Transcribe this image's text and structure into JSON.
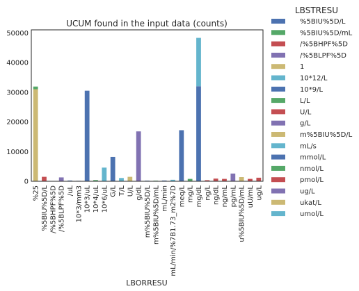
{
  "chart_data": {
    "type": "bar",
    "stacked": true,
    "title": "UCUM found in the input data (counts)",
    "xlabel": "LBORRESU",
    "ylabel": "",
    "ylim": [
      0,
      51000
    ],
    "yticks": [
      0,
      10000,
      20000,
      30000,
      40000,
      50000
    ],
    "grid": false,
    "legend_position": "right-outside",
    "legend_title": "LBSTRESU",
    "categories": [
      "%25",
      "%5BIU%5D/L",
      "/%5BHPF%5D",
      "/%5BLPF%5D",
      "/uL",
      "10*3/mm3",
      "10*3/uL",
      "10*4/uL",
      "10*6/uL",
      "G/L",
      "T/L",
      "U/L",
      "g/dL",
      "m%5BIU%5D/L",
      "m%5BIU%5D/mL",
      "mL/min",
      "mL/min/%7B1.73_m2%7D",
      "meq/L",
      "mg/L",
      "mg/dL",
      "ng/L",
      "ng/dL",
      "ng/mL",
      "pg/mL",
      "u%5BIU%5D/mL",
      "uU/mL",
      "ug/L"
    ],
    "series": [
      {
        "name": "%5BIU%5D/L",
        "color": "#4c72b0",
        "values": [
          0,
          0,
          0,
          0,
          0,
          0,
          0,
          0,
          0,
          0,
          0,
          0,
          0,
          0,
          0,
          0,
          0,
          0,
          0,
          0,
          0,
          0,
          0,
          0,
          0,
          0,
          0
        ]
      },
      {
        "name": "%5BIU%5D/mL",
        "color": "#55a868",
        "values": [
          0,
          0,
          0,
          0,
          0,
          0,
          0,
          0,
          0,
          0,
          0,
          0,
          0,
          0,
          0,
          0,
          0,
          0,
          0,
          0,
          0,
          0,
          0,
          0,
          0,
          0,
          0
        ]
      },
      {
        "name": "/%5BHPF%5D",
        "color": "#c44e52",
        "values": [
          0,
          1500,
          0,
          0,
          0,
          0,
          0,
          0,
          0,
          0,
          0,
          0,
          0,
          0,
          0,
          0,
          0,
          0,
          0,
          0,
          0,
          0,
          0,
          0,
          0,
          0,
          0
        ]
      },
      {
        "name": "/%5BLPF%5D",
        "color": "#8172b2",
        "values": [
          0,
          0,
          0,
          1300,
          0,
          0,
          0,
          0,
          0,
          0,
          0,
          0,
          0,
          0,
          0,
          0,
          0,
          0,
          0,
          0,
          0,
          0,
          0,
          0,
          0,
          0,
          0
        ]
      },
      {
        "name": "1",
        "color": "#ccb974",
        "values": [
          31000,
          0,
          0,
          0,
          0,
          0,
          0,
          0,
          0,
          0,
          0,
          0,
          0,
          0,
          0,
          0,
          0,
          0,
          0,
          0,
          0,
          0,
          0,
          0,
          0,
          0,
          0
        ]
      },
      {
        "name": "10*12/L",
        "color": "#64b5cd",
        "values": [
          0,
          0,
          0,
          0,
          0,
          0,
          0,
          0,
          0,
          0,
          1100,
          0,
          0,
          0,
          0,
          0,
          0,
          0,
          0,
          0,
          0,
          0,
          0,
          0,
          0,
          0,
          0
        ]
      },
      {
        "name": "10*9/L",
        "color": "#4c72b0",
        "values": [
          0,
          0,
          0,
          0,
          0,
          0,
          30500,
          0,
          0,
          8200,
          0,
          0,
          0,
          0,
          0,
          0,
          0,
          0,
          0,
          0,
          0,
          0,
          0,
          0,
          0,
          0,
          0
        ]
      },
      {
        "name": "L/L",
        "color": "#55a868",
        "values": [
          900,
          0,
          0,
          0,
          0,
          0,
          0,
          0,
          0,
          0,
          0,
          0,
          0,
          0,
          0,
          0,
          0,
          0,
          0,
          0,
          0,
          0,
          0,
          0,
          0,
          0,
          0
        ]
      },
      {
        "name": "U/L",
        "color": "#c44e52",
        "values": [
          0,
          0,
          0,
          0,
          0,
          0,
          0,
          0,
          0,
          0,
          0,
          0,
          0,
          0,
          0,
          0,
          0,
          0,
          0,
          0,
          0,
          0,
          0,
          0,
          0,
          0,
          0
        ]
      },
      {
        "name": "g/L",
        "color": "#8172b2",
        "values": [
          0,
          0,
          0,
          0,
          0,
          0,
          0,
          0,
          0,
          0,
          0,
          0,
          16800,
          0,
          0,
          0,
          0,
          0,
          0,
          0,
          0,
          0,
          0,
          0,
          0,
          0,
          0
        ]
      },
      {
        "name": "m%5BIU%5D/L",
        "color": "#ccb974",
        "values": [
          0,
          0,
          0,
          0,
          0,
          0,
          0,
          0,
          0,
          0,
          0,
          0,
          0,
          0,
          0,
          0,
          0,
          0,
          0,
          0,
          0,
          0,
          0,
          0,
          0,
          0,
          0
        ]
      },
      {
        "name": "mL/s",
        "color": "#64b5cd",
        "values": [
          0,
          0,
          0,
          0,
          0,
          0,
          0,
          0,
          0,
          0,
          0,
          0,
          0,
          0,
          0,
          0,
          0,
          0,
          0,
          0,
          0,
          0,
          0,
          0,
          0,
          0,
          0
        ]
      },
      {
        "name": "mmol/L",
        "color": "#4c72b0",
        "values": [
          0,
          0,
          0,
          0,
          0,
          0,
          0,
          0,
          0,
          0,
          0,
          0,
          0,
          0,
          0,
          0,
          0,
          17200,
          0,
          32000,
          0,
          0,
          0,
          0,
          0,
          0,
          0
        ]
      },
      {
        "name": "nmol/L",
        "color": "#55a868",
        "values": [
          0,
          0,
          0,
          0,
          0,
          0,
          0,
          0,
          0,
          0,
          0,
          0,
          0,
          0,
          0,
          0,
          0,
          0,
          800,
          0,
          0,
          0,
          0,
          0,
          0,
          0,
          0
        ]
      },
      {
        "name": "pmol/L",
        "color": "#c44e52",
        "values": [
          0,
          0,
          0,
          0,
          0,
          0,
          0,
          0,
          0,
          0,
          0,
          0,
          0,
          0,
          0,
          0,
          0,
          0,
          0,
          0,
          0,
          900,
          0,
          0,
          0,
          0,
          1200
        ]
      },
      {
        "name": "ug/L",
        "color": "#8172b2",
        "values": [
          0,
          0,
          0,
          0,
          0,
          0,
          0,
          0,
          0,
          0,
          0,
          0,
          0,
          0,
          0,
          0,
          0,
          0,
          0,
          0,
          0,
          0,
          0,
          2600,
          0,
          0,
          0
        ]
      },
      {
        "name": "ukat/L",
        "color": "#ccb974",
        "values": [
          0,
          0,
          0,
          0,
          0,
          0,
          0,
          0,
          0,
          0,
          0,
          1500,
          0,
          0,
          0,
          0,
          0,
          0,
          0,
          0,
          0,
          0,
          0,
          0,
          1400,
          0,
          0
        ]
      },
      {
        "name": "umol/L",
        "color": "#64b5cd",
        "values": [
          0,
          0,
          0,
          0,
          0,
          0,
          0,
          0,
          4600,
          0,
          0,
          0,
          0,
          0,
          0,
          0,
          0,
          0,
          0,
          16300,
          0,
          0,
          0,
          0,
          0,
          0,
          0
        ]
      }
    ],
    "other_small_bars": {
      "/%5BHPF%5D": 0,
      "/uL": 250,
      "10*3/mm3": 150,
      "10*4/uL": 400,
      "m%5BIU%5D/L": 200,
      "m%5BIU%5D/mL": 200,
      "mL/min": 250,
      "mL/min/%7B1.73_m2%7D": 500,
      "ng/L": 350,
      "ng/mL": 800,
      "uU/mL": 800,
      "10*6/uL": 0
    },
    "other_small_bar_colors": {
      "/uL": "#4c72b0",
      "10*3/mm3": "#4c72b0",
      "10*4/uL": "#55a868",
      "m%5BIU%5D/L": "#4c72b0",
      "m%5BIU%5D/mL": "#55a868",
      "mL/min": "#4c72b0",
      "mL/min/%7B1.73_m2%7D": "#64b5cd",
      "ng/L": "#c44e52",
      "ng/mL": "#c44e52",
      "uU/mL": "#c44e52"
    }
  }
}
